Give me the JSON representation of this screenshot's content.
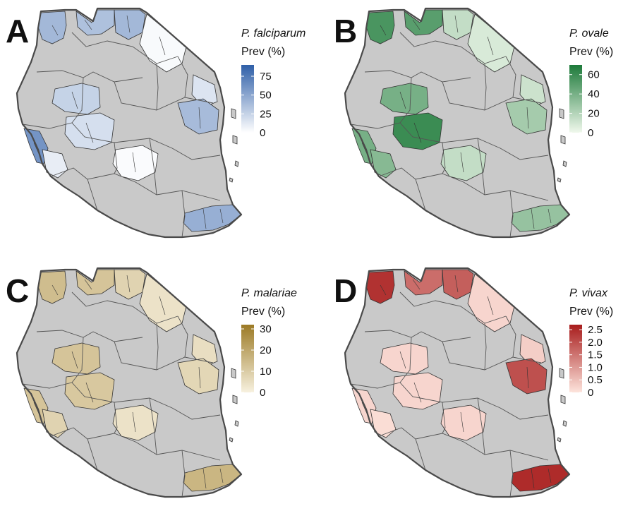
{
  "figure": {
    "panels": [
      {
        "id": "A",
        "letter": "A",
        "species": "P. falciparum",
        "legend_subtitle": "Prev (%)",
        "color_low": "#ffffff",
        "color_high": "#2f5fa8",
        "scale_max": 90,
        "ticks": [
          {
            "value": 75,
            "label": "75"
          },
          {
            "value": 50,
            "label": "50"
          },
          {
            "value": 25,
            "label": "25"
          },
          {
            "value": 0,
            "label": "0"
          }
        ],
        "regions": [
          {
            "name": "northwest-lake",
            "value": 40
          },
          {
            "name": "northwest-border",
            "value": 35
          },
          {
            "name": "north-central",
            "value": 40
          },
          {
            "name": "northeast",
            "value": 3
          },
          {
            "name": "northeast-coast",
            "value": 15
          },
          {
            "name": "west-central",
            "value": 25
          },
          {
            "name": "central-large",
            "value": 18
          },
          {
            "name": "east-coast",
            "value": 38
          },
          {
            "name": "southwest-lake",
            "value": 60
          },
          {
            "name": "southwest-inland",
            "value": 10
          },
          {
            "name": "south-central",
            "value": 2
          },
          {
            "name": "southeast-coast",
            "value": 45
          }
        ]
      },
      {
        "id": "B",
        "letter": "B",
        "species": "P. ovale",
        "legend_subtitle": "Prev (%)",
        "color_low": "#f0f8ec",
        "color_high": "#1d7a3a",
        "scale_max": 70,
        "ticks": [
          {
            "value": 60,
            "label": "60"
          },
          {
            "value": 40,
            "label": "40"
          },
          {
            "value": 20,
            "label": "20"
          },
          {
            "value": 0,
            "label": "0"
          }
        ],
        "regions": [
          {
            "name": "northwest-lake",
            "value": 55
          },
          {
            "name": "northwest-border",
            "value": 50
          },
          {
            "name": "north-central",
            "value": 15
          },
          {
            "name": "northeast",
            "value": 8
          },
          {
            "name": "northeast-coast",
            "value": 12
          },
          {
            "name": "west-central",
            "value": 40
          },
          {
            "name": "central-large",
            "value": 60
          },
          {
            "name": "east-coast",
            "value": 25
          },
          {
            "name": "southwest-lake",
            "value": 40
          },
          {
            "name": "southwest-inland",
            "value": 35
          },
          {
            "name": "south-central",
            "value": 15
          },
          {
            "name": "southeast-coast",
            "value": 30
          }
        ]
      },
      {
        "id": "C",
        "letter": "C",
        "species": "P. malariae",
        "legend_subtitle": "Prev (%)",
        "color_low": "#f7f1df",
        "color_high": "#9c7a25",
        "scale_max": 32,
        "ticks": [
          {
            "value": 30,
            "label": "30"
          },
          {
            "value": 20,
            "label": "20"
          },
          {
            "value": 10,
            "label": "10"
          },
          {
            "value": 0,
            "label": "0"
          }
        ],
        "regions": [
          {
            "name": "northwest-lake",
            "value": 14
          },
          {
            "name": "northwest-border",
            "value": 12
          },
          {
            "name": "north-central",
            "value": 8
          },
          {
            "name": "northeast",
            "value": 4
          },
          {
            "name": "northeast-coast",
            "value": 5
          },
          {
            "name": "west-central",
            "value": 12
          },
          {
            "name": "central-large",
            "value": 11
          },
          {
            "name": "east-coast",
            "value": 7
          },
          {
            "name": "southwest-lake",
            "value": 12
          },
          {
            "name": "southwest-inland",
            "value": 8
          },
          {
            "name": "south-central",
            "value": 4
          },
          {
            "name": "southeast-coast",
            "value": 16
          }
        ]
      },
      {
        "id": "D",
        "letter": "D",
        "species": "P. vivax",
        "legend_subtitle": "Prev (%)",
        "color_low": "#fde4dc",
        "color_high": "#a81c1c",
        "scale_max": 2.7,
        "ticks": [
          {
            "value": 2.5,
            "label": "2.5"
          },
          {
            "value": 2.0,
            "label": "2.0"
          },
          {
            "value": 1.5,
            "label": "1.5"
          },
          {
            "value": 1.0,
            "label": "1.0"
          },
          {
            "value": 0.5,
            "label": "0.5"
          },
          {
            "value": 0,
            "label": "0"
          }
        ],
        "regions": [
          {
            "name": "northwest-lake",
            "value": 2.4
          },
          {
            "name": "northwest-border",
            "value": 1.6
          },
          {
            "name": "north-central",
            "value": 1.8
          },
          {
            "name": "northeast",
            "value": 0.2
          },
          {
            "name": "northeast-coast",
            "value": 0.3
          },
          {
            "name": "west-central",
            "value": 0.2
          },
          {
            "name": "central-large",
            "value": 0.2
          },
          {
            "name": "east-coast",
            "value": 2.0
          },
          {
            "name": "southwest-lake",
            "value": 0.2
          },
          {
            "name": "southwest-inland",
            "value": 0.1
          },
          {
            "name": "south-central",
            "value": 0.2
          },
          {
            "name": "southeast-coast",
            "value": 2.5
          }
        ]
      }
    ],
    "colors": {
      "land": "#c9c9c9",
      "border": "#4a4a4a",
      "background": "#ffffff"
    }
  }
}
